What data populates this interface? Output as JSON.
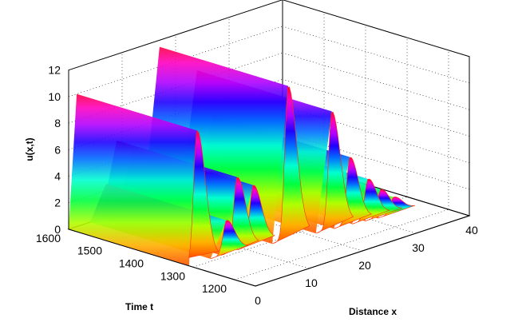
{
  "chart_data": {
    "type": "surface3d",
    "title": "",
    "xlabel": "Distance x",
    "ylabel": "Time t",
    "zlabel": "u(x,t)",
    "xlim": [
      0,
      40
    ],
    "ylim": [
      1150,
      1600
    ],
    "zlim": [
      0,
      12
    ],
    "x_ticks": [
      "0",
      "10",
      "20",
      "30",
      "40"
    ],
    "y_ticks": [
      "1200",
      "1300",
      "1400",
      "1500",
      "1600"
    ],
    "z_ticks": [
      "0",
      "2",
      "4",
      "6",
      "8",
      "10",
      "12"
    ],
    "grid": true,
    "colormap": "hsv",
    "series": [
      {
        "peak_x": 1.5,
        "peak_t": 1310,
        "amplitude": 10.0
      },
      {
        "peak_x": 17,
        "peak_t": 1290,
        "amplitude": 11.5
      },
      {
        "peak_x": 24,
        "peak_t": 1275,
        "amplitude": 8.8
      },
      {
        "peak_x": 9,
        "peak_t": 1310,
        "amplitude": 5.5
      },
      {
        "peak_x": 12,
        "peak_t": 1310,
        "amplitude": 4.5
      },
      {
        "peak_x": 7,
        "peak_t": 1310,
        "amplitude": 2.5
      },
      {
        "peak_x": 27,
        "peak_t": 1270,
        "amplitude": 5.0
      },
      {
        "peak_x": 30,
        "peak_t": 1265,
        "amplitude": 3.0
      },
      {
        "peak_x": 32,
        "peak_t": 1260,
        "amplitude": 2.0
      },
      {
        "peak_x": 34,
        "peak_t": 1255,
        "amplitude": 1.2
      }
    ]
  }
}
